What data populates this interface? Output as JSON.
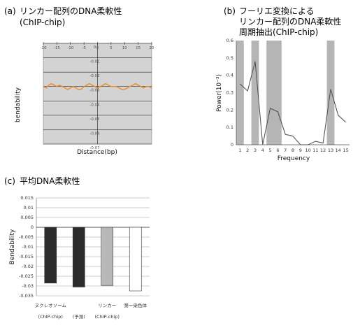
{
  "panel_a": {
    "label": "(a)",
    "title_lines": [
      "リンカー配列のDNA柔軟性",
      "(ChIP-chip)"
    ]
  },
  "panel_b": {
    "label": "(b)",
    "title_lines": [
      "フーリエ変換による",
      "リンカー配列のDNA柔軟性",
      "周期抽出(ChIP-chip)"
    ]
  },
  "panel_c": {
    "label": "(c)",
    "title_lines": [
      "平均DNA柔軟性"
    ]
  },
  "chart_data": [
    {
      "type": "line",
      "title": "(a) リンカー配列のDNA柔軟性 (ChIP-chip)",
      "xlabel": "Distance(bp)",
      "ylabel": "bendability",
      "xlim": [
        -20,
        20
      ],
      "ylim": [
        -0.07,
        0
      ],
      "x_ticks": [
        "-20",
        "-15",
        "-10",
        "-5",
        "0",
        "5",
        "10",
        "15",
        "20"
      ],
      "y_ticks": [
        "0",
        "-0.01",
        "-0.02",
        "-0.03",
        "-0.04",
        "-0.05",
        "-0.06",
        "-0.07"
      ],
      "background": "#d3d3d3",
      "line_color": "#f08a24",
      "grid": true,
      "series": [
        {
          "x": [
            -20,
            -19,
            -18,
            -17,
            -16,
            -15,
            -14,
            -13,
            -12,
            -11,
            -10,
            -9,
            -8,
            -7,
            -6,
            -5,
            -4,
            -3,
            -2,
            -1,
            0,
            1,
            2,
            3,
            4,
            5,
            6,
            7,
            8,
            9,
            10,
            11,
            12,
            13,
            14,
            15,
            16,
            17,
            18,
            19,
            20
          ],
          "values": [
            -0.03,
            -0.031,
            -0.029,
            -0.028,
            -0.029,
            -0.03,
            -0.029,
            -0.03,
            -0.031,
            -0.032,
            -0.031,
            -0.03,
            -0.031,
            -0.032,
            -0.032,
            -0.03,
            -0.029,
            -0.028,
            -0.029,
            -0.03,
            -0.031,
            -0.03,
            -0.029,
            -0.028,
            -0.029,
            -0.03,
            -0.03,
            -0.03,
            -0.031,
            -0.032,
            -0.032,
            -0.031,
            -0.03,
            -0.029,
            -0.028,
            -0.029,
            -0.03,
            -0.031,
            -0.03,
            -0.03,
            -0.031
          ]
        }
      ]
    },
    {
      "type": "line",
      "title": "(b) フーリエ変換による リンカー配列のDNA柔軟性 周期抽出(ChIP-chip)",
      "xlabel": "Frequency",
      "ylabel": "Power(10⁻³)",
      "ylim": [
        0,
        0.6
      ],
      "categories": [
        "1",
        "2",
        "3",
        "4",
        "5",
        "6",
        "7",
        "8",
        "9",
        "10",
        "11",
        "12",
        "13",
        "14",
        "15"
      ],
      "y_ticks": [
        "0",
        "0.1",
        "0.2",
        "0.3",
        "0.4",
        "0.5",
        "0.6"
      ],
      "highlight_bands": [
        [
          0.5,
          1.5
        ],
        [
          2.5,
          3.5
        ],
        [
          4.5,
          6.5
        ],
        [
          12.5,
          13.5
        ]
      ],
      "band_color": "#b5b5b5",
      "line_color": "#555555",
      "grid": false,
      "series": [
        {
          "values": [
            0.35,
            0.31,
            0.48,
            0.0,
            0.21,
            0.19,
            0.06,
            0.05,
            0.0,
            0.0,
            0.02,
            0.01,
            0.32,
            0.17,
            0.13
          ]
        }
      ]
    },
    {
      "type": "bar",
      "title": "(c) 平均DNA柔軟性",
      "ylabel": "Bendability",
      "ylim": [
        -0.035,
        0.015
      ],
      "y_ticks": [
        "0.015",
        "0.01",
        "0.005",
        "0",
        "-0.005",
        "-0.01",
        "-0.015",
        "-0.02",
        "-0.025",
        "-0.03",
        "-0.035"
      ],
      "categories": [
        [
          "ヌクレオソーム",
          "(ChIP-chip)"
        ],
        [
          "",
          "(予測)"
        ],
        [
          "リンカー",
          "(ChIP-chip)"
        ],
        [
          "第一染色体",
          ""
        ]
      ],
      "grid": true,
      "series": [
        {
          "values": [
            -0.0285,
            -0.0305,
            -0.0297,
            -0.0325
          ],
          "colors": [
            "#2b2b2b",
            "#2b2b2b",
            "#b8b8b8",
            "#ffffff"
          ]
        }
      ]
    }
  ]
}
